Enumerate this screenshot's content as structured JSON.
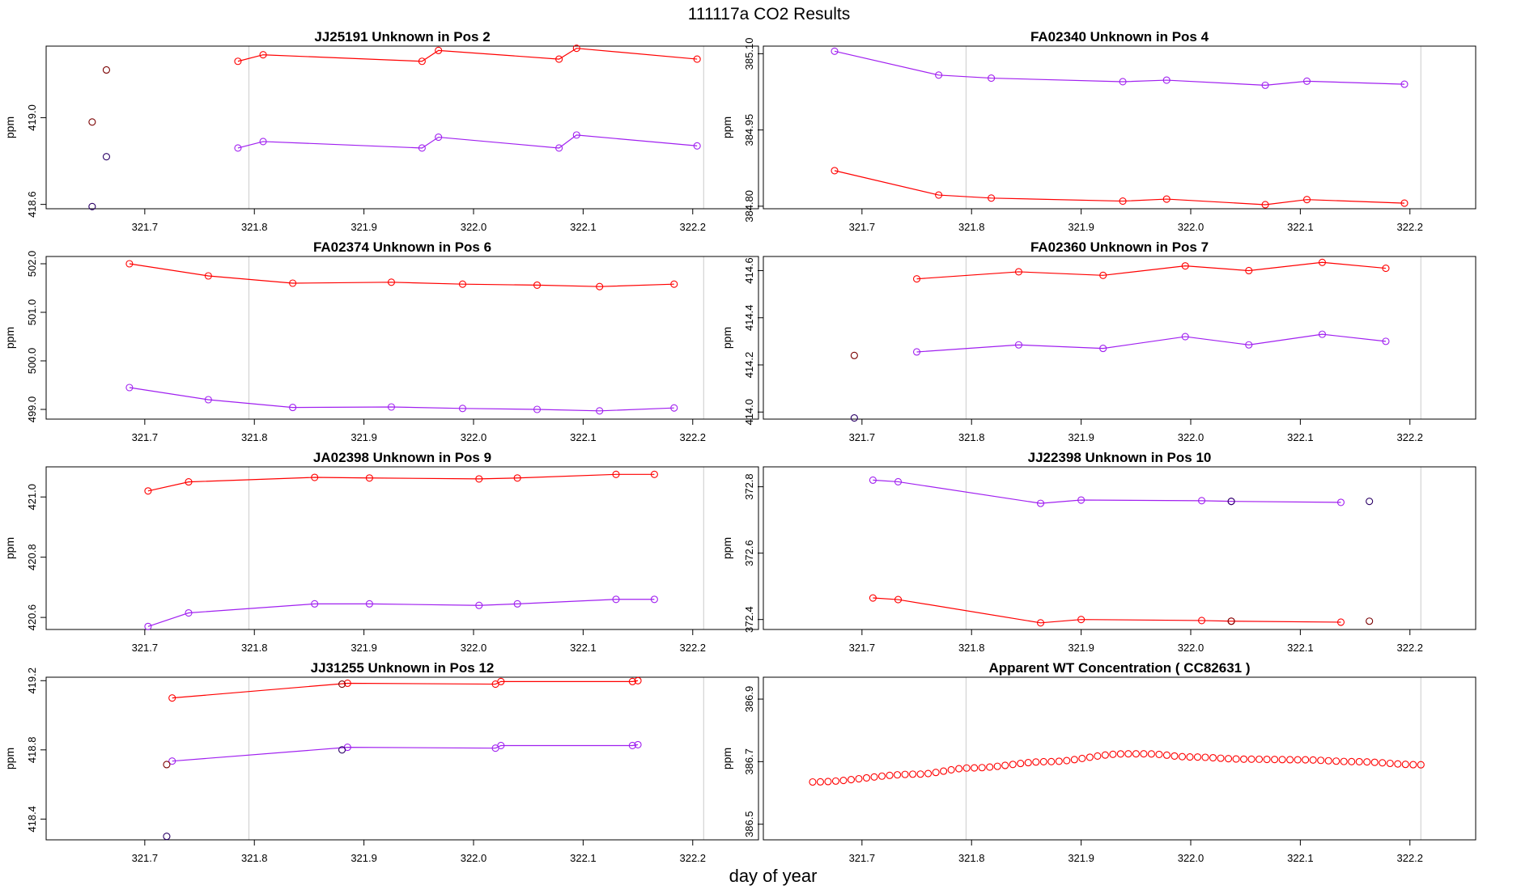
{
  "figure": {
    "title": "111117a  CO2 Results",
    "xlabel": "day of year",
    "colors": {
      "red": "#ff0000",
      "purple": "#a020f0",
      "dark": "#2a0033",
      "grid": "#d3d3d3"
    }
  },
  "chart_data": [
    {
      "type": "scatter",
      "title": "JJ25191    Unknown in Pos 2",
      "ylabel": "ppm",
      "xlim": [
        321.61,
        322.26
      ],
      "ylim": [
        418.58,
        419.33
      ],
      "xticks": [
        321.7,
        321.8,
        321.9,
        322.0,
        322.1,
        322.2
      ],
      "xtick_labels": [
        "321.7",
        "321.8",
        "321.9",
        "322.0",
        "322.1",
        "322.2"
      ],
      "yticks": [
        418.6,
        419.0
      ],
      "ytick_labels": [
        "418.6",
        "419.0"
      ],
      "vlines": [
        321.795,
        322.21
      ],
      "series": [
        {
          "name": "red",
          "color": "#ff0000",
          "connected": true,
          "x": [
            321.785,
            321.808,
            321.953,
            321.968,
            322.078,
            322.094,
            322.204
          ],
          "y": [
            419.26,
            419.29,
            419.26,
            419.31,
            419.27,
            419.32,
            419.27
          ]
        },
        {
          "name": "purple",
          "color": "#a020f0",
          "connected": true,
          "x": [
            321.785,
            321.808,
            321.953,
            321.968,
            322.078,
            322.094,
            322.204
          ],
          "y": [
            418.86,
            418.89,
            418.86,
            418.91,
            418.86,
            418.92,
            418.87
          ]
        },
        {
          "name": "dark-red",
          "color": "#7a0000",
          "connected": false,
          "x": [
            321.652,
            321.665
          ],
          "y": [
            418.98,
            419.22
          ]
        },
        {
          "name": "dark-purple",
          "color": "#2a0066",
          "connected": false,
          "x": [
            321.652,
            321.665
          ],
          "y": [
            418.59,
            418.82
          ]
        }
      ]
    },
    {
      "type": "scatter",
      "title": "FA02340    Unknown in Pos 4",
      "ylabel": "ppm",
      "xlim": [
        321.61,
        322.26
      ],
      "ylim": [
        384.795,
        385.115
      ],
      "xticks": [
        321.7,
        321.8,
        321.9,
        322.0,
        322.1,
        322.2
      ],
      "xtick_labels": [
        "321.7",
        "321.8",
        "321.9",
        "322.0",
        "322.1",
        "322.2"
      ],
      "yticks": [
        384.8,
        384.95,
        385.1
      ],
      "ytick_labels": [
        "384.80",
        "384.95",
        "385.10"
      ],
      "vlines": [
        321.795,
        322.21
      ],
      "series": [
        {
          "name": "purple",
          "color": "#a020f0",
          "connected": true,
          "x": [
            321.675,
            321.77,
            321.818,
            321.938,
            321.978,
            322.068,
            322.106,
            322.195
          ],
          "y": [
            385.105,
            385.058,
            385.052,
            385.045,
            385.048,
            385.038,
            385.046,
            385.04
          ]
        },
        {
          "name": "red",
          "color": "#ff0000",
          "connected": true,
          "x": [
            321.675,
            321.77,
            321.818,
            321.938,
            321.978,
            322.068,
            322.106,
            322.195
          ],
          "y": [
            384.87,
            384.822,
            384.816,
            384.81,
            384.814,
            384.803,
            384.813,
            384.806
          ]
        }
      ]
    },
    {
      "type": "scatter",
      "title": "FA02374    Unknown in Pos 6",
      "ylabel": "ppm",
      "xlim": [
        321.61,
        322.26
      ],
      "ylim": [
        498.8,
        502.15
      ],
      "xticks": [
        321.7,
        321.8,
        321.9,
        322.0,
        322.1,
        322.2
      ],
      "xtick_labels": [
        "321.7",
        "321.8",
        "321.9",
        "322.0",
        "322.1",
        "322.2"
      ],
      "yticks": [
        499.0,
        500.0,
        501.0,
        502.0
      ],
      "ytick_labels": [
        "499.0",
        "500.0",
        "501.0",
        "502.0"
      ],
      "vlines": [
        321.795,
        322.21
      ],
      "series": [
        {
          "name": "red",
          "color": "#ff0000",
          "connected": true,
          "x": [
            321.686,
            321.758,
            321.835,
            321.925,
            321.99,
            322.058,
            322.115,
            322.183
          ],
          "y": [
            502.0,
            501.75,
            501.6,
            501.62,
            501.58,
            501.56,
            501.53,
            501.58
          ]
        },
        {
          "name": "purple",
          "color": "#a020f0",
          "connected": true,
          "x": [
            321.686,
            321.758,
            321.835,
            321.925,
            321.99,
            322.058,
            322.115,
            322.183
          ],
          "y": [
            499.45,
            499.2,
            499.04,
            499.05,
            499.02,
            499.0,
            498.97,
            499.03
          ]
        }
      ]
    },
    {
      "type": "scatter",
      "title": "FA02360    Unknown in Pos 7",
      "ylabel": "ppm",
      "xlim": [
        321.61,
        322.26
      ],
      "ylim": [
        413.97,
        414.66
      ],
      "xticks": [
        321.7,
        321.8,
        321.9,
        322.0,
        322.1,
        322.2
      ],
      "xtick_labels": [
        "321.7",
        "321.8",
        "321.9",
        "322.0",
        "322.1",
        "322.2"
      ],
      "yticks": [
        414.0,
        414.2,
        414.4,
        414.6
      ],
      "ytick_labels": [
        "414.0",
        "414.2",
        "414.4",
        "414.6"
      ],
      "vlines": [
        321.795,
        322.21
      ],
      "series": [
        {
          "name": "red",
          "color": "#ff0000",
          "connected": true,
          "x": [
            321.75,
            321.843,
            321.92,
            321.995,
            322.053,
            322.12,
            322.178
          ],
          "y": [
            414.565,
            414.595,
            414.58,
            414.62,
            414.6,
            414.635,
            414.61
          ]
        },
        {
          "name": "purple",
          "color": "#a020f0",
          "connected": true,
          "x": [
            321.75,
            321.843,
            321.92,
            321.995,
            322.053,
            322.12,
            322.178
          ],
          "y": [
            414.255,
            414.285,
            414.27,
            414.32,
            414.285,
            414.33,
            414.3
          ]
        },
        {
          "name": "dark-red",
          "color": "#7a0000",
          "connected": false,
          "x": [
            321.693
          ],
          "y": [
            414.24
          ]
        },
        {
          "name": "dark-purple",
          "color": "#2a0066",
          "connected": false,
          "x": [
            321.693
          ],
          "y": [
            413.975
          ]
        }
      ]
    },
    {
      "type": "scatter",
      "title": "JA02398    Unknown in Pos 9",
      "ylabel": "ppm",
      "xlim": [
        321.61,
        322.26
      ],
      "ylim": [
        420.56,
        421.1
      ],
      "xticks": [
        321.7,
        321.8,
        321.9,
        322.0,
        322.1,
        322.2
      ],
      "xtick_labels": [
        "321.7",
        "321.8",
        "321.9",
        "322.0",
        "322.1",
        "322.2"
      ],
      "yticks": [
        420.6,
        420.8,
        421.0
      ],
      "ytick_labels": [
        "420.6",
        "420.8",
        "421.0"
      ],
      "vlines": [
        321.795,
        322.21
      ],
      "series": [
        {
          "name": "red",
          "color": "#ff0000",
          "connected": true,
          "x": [
            321.703,
            321.74,
            321.855,
            321.905,
            322.005,
            322.04,
            322.13,
            322.165
          ],
          "y": [
            421.02,
            421.05,
            421.065,
            421.063,
            421.06,
            421.063,
            421.075,
            421.075
          ]
        },
        {
          "name": "purple",
          "color": "#a020f0",
          "connected": true,
          "x": [
            321.703,
            321.74,
            321.855,
            321.905,
            322.005,
            322.04,
            322.13,
            322.165
          ],
          "y": [
            420.57,
            420.615,
            420.645,
            420.645,
            420.64,
            420.645,
            420.66,
            420.66
          ]
        }
      ]
    },
    {
      "type": "scatter",
      "title": "JJ22398    Unknown in Pos 10",
      "ylabel": "ppm",
      "xlim": [
        321.61,
        322.26
      ],
      "ylim": [
        372.37,
        372.86
      ],
      "xticks": [
        321.7,
        321.8,
        321.9,
        322.0,
        322.1,
        322.2
      ],
      "xtick_labels": [
        "321.7",
        "321.8",
        "321.9",
        "322.0",
        "322.1",
        "322.2"
      ],
      "yticks": [
        372.4,
        372.6,
        372.8
      ],
      "ytick_labels": [
        "372.4",
        "372.6",
        "372.8"
      ],
      "vlines": [
        321.795,
        322.21
      ],
      "series": [
        {
          "name": "purple",
          "color": "#a020f0",
          "connected": true,
          "x": [
            321.71,
            321.733,
            321.863,
            321.9,
            322.01,
            322.037,
            322.137
          ],
          "y": [
            372.82,
            372.815,
            372.75,
            372.76,
            372.758,
            372.756,
            372.753
          ]
        },
        {
          "name": "red",
          "color": "#ff0000",
          "connected": true,
          "x": [
            321.71,
            321.733,
            321.863,
            321.9,
            322.01,
            322.037,
            322.137
          ],
          "y": [
            372.465,
            372.46,
            372.39,
            372.4,
            372.397,
            372.395,
            372.392
          ]
        },
        {
          "name": "dark-purple",
          "color": "#2a0066",
          "connected": false,
          "x": [
            322.037,
            322.163
          ],
          "y": [
            372.756,
            372.756
          ]
        },
        {
          "name": "dark-red",
          "color": "#7a0000",
          "connected": false,
          "x": [
            322.037,
            322.163
          ],
          "y": [
            372.395,
            372.395
          ]
        }
      ]
    },
    {
      "type": "scatter",
      "title": "JJ31255    Unknown in Pos 12",
      "ylabel": "ppm",
      "xlim": [
        321.61,
        322.26
      ],
      "ylim": [
        418.28,
        419.22
      ],
      "xticks": [
        321.7,
        321.8,
        321.9,
        322.0,
        322.1,
        322.2
      ],
      "xtick_labels": [
        "321.7",
        "321.8",
        "321.9",
        "322.0",
        "322.1",
        "322.2"
      ],
      "yticks": [
        418.4,
        418.8,
        419.2
      ],
      "ytick_labels": [
        "418.4",
        "418.8",
        "419.2"
      ],
      "vlines": [
        321.795,
        322.21
      ],
      "series": [
        {
          "name": "red",
          "color": "#ff0000",
          "connected": true,
          "x": [
            321.725,
            321.885,
            322.02,
            322.025,
            322.145,
            322.15
          ],
          "y": [
            419.1,
            419.185,
            419.18,
            419.195,
            419.195,
            419.2
          ]
        },
        {
          "name": "purple",
          "color": "#a020f0",
          "connected": true,
          "x": [
            321.725,
            321.885,
            322.02,
            322.025,
            322.145,
            322.15
          ],
          "y": [
            418.735,
            418.815,
            418.81,
            418.825,
            418.825,
            418.83
          ]
        },
        {
          "name": "dark-red",
          "color": "#7a0000",
          "connected": false,
          "x": [
            321.72,
            321.88
          ],
          "y": [
            418.715,
            419.18
          ]
        },
        {
          "name": "dark-purple",
          "color": "#2a0066",
          "connected": false,
          "x": [
            321.72,
            321.88
          ],
          "y": [
            418.3,
            418.8
          ]
        }
      ]
    },
    {
      "type": "scatter",
      "title": "Apparent WT Concentration ( CC82631 )",
      "ylabel": "ppm",
      "xlim": [
        321.61,
        322.26
      ],
      "ylim": [
        386.45,
        386.97
      ],
      "xticks": [
        321.7,
        321.8,
        321.9,
        322.0,
        322.1,
        322.2
      ],
      "xtick_labels": [
        "321.7",
        "321.8",
        "321.9",
        "322.0",
        "322.1",
        "322.2"
      ],
      "yticks": [
        386.5,
        386.7,
        386.9
      ],
      "ytick_labels": [
        "386.5",
        "386.7",
        "386.9"
      ],
      "vlines": [
        321.795,
        322.21
      ],
      "curve": {
        "color": "#ff0000",
        "x_start": 321.655,
        "x_end": 322.21,
        "count": 80,
        "knots_x": [
          321.655,
          321.75,
          321.8,
          321.87,
          321.94,
          321.96,
          322.0,
          322.05,
          322.1,
          322.15,
          322.21
        ],
        "knots_y": [
          386.635,
          386.66,
          386.68,
          386.7,
          386.725,
          386.725,
          386.715,
          386.708,
          386.706,
          386.7,
          386.69
        ]
      }
    }
  ]
}
